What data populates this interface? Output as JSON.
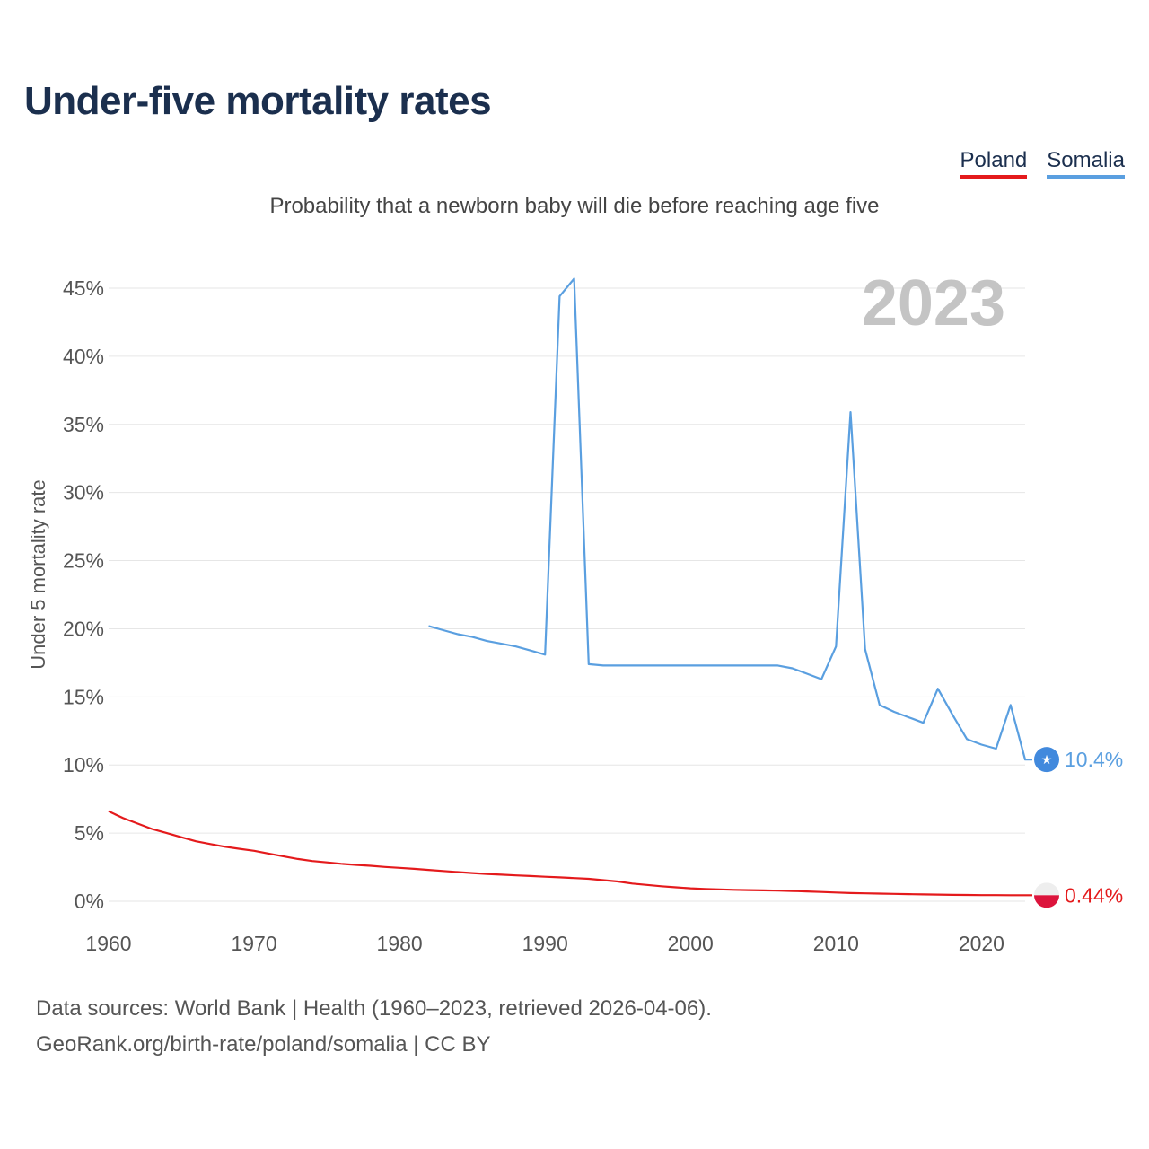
{
  "title": "Under-five mortality rates",
  "subtitle": "Probability that a newborn baby will die before reaching age five",
  "legend": [
    {
      "name": "Poland",
      "color": "#e41a1c"
    },
    {
      "name": "Somalia",
      "color": "#5a9fe0"
    }
  ],
  "footer": {
    "line1": "Data sources: World Bank | Health (1960–2023, retrieved 2026-04-06).",
    "line2": "GeoRank.org/birth-rate/poland/somalia | CC BY"
  },
  "chart_data": {
    "type": "line",
    "title": "Under-five mortality rates",
    "subtitle": "Probability that a newborn baby will die before reaching age five",
    "ylabel": "Under 5 mortality rate",
    "xlabel": "",
    "year_label": "2023",
    "xlim": [
      1960,
      2023
    ],
    "ylim": [
      0,
      45
    ],
    "x_ticks": [
      1960,
      1970,
      1980,
      1990,
      2000,
      2010,
      2020
    ],
    "y_ticks": [
      0,
      5,
      10,
      15,
      20,
      25,
      30,
      35,
      40,
      45
    ],
    "y_tick_labels": [
      "0%",
      "5%",
      "10%",
      "15%",
      "20%",
      "25%",
      "30%",
      "35%",
      "40%",
      "45%"
    ],
    "grid": true,
    "series": [
      {
        "name": "Poland",
        "color": "#e41a1c",
        "end_label": "0.44%",
        "x": [
          1960,
          1961,
          1962,
          1963,
          1964,
          1965,
          1966,
          1967,
          1968,
          1969,
          1970,
          1971,
          1972,
          1973,
          1974,
          1975,
          1976,
          1977,
          1978,
          1979,
          1980,
          1981,
          1982,
          1983,
          1984,
          1985,
          1986,
          1987,
          1988,
          1989,
          1990,
          1991,
          1992,
          1993,
          1994,
          1995,
          1996,
          1997,
          1998,
          1999,
          2000,
          2001,
          2002,
          2003,
          2004,
          2005,
          2006,
          2007,
          2008,
          2009,
          2010,
          2011,
          2012,
          2013,
          2014,
          2015,
          2016,
          2017,
          2018,
          2019,
          2020,
          2021,
          2022,
          2023
        ],
        "values": [
          6.6,
          6.1,
          5.7,
          5.3,
          5.0,
          4.7,
          4.4,
          4.2,
          4.0,
          3.85,
          3.7,
          3.5,
          3.3,
          3.1,
          2.95,
          2.85,
          2.75,
          2.67,
          2.6,
          2.52,
          2.45,
          2.38,
          2.3,
          2.22,
          2.14,
          2.07,
          2.0,
          1.95,
          1.9,
          1.85,
          1.8,
          1.75,
          1.7,
          1.65,
          1.55,
          1.45,
          1.3,
          1.2,
          1.1,
          1.02,
          0.95,
          0.9,
          0.87,
          0.84,
          0.82,
          0.8,
          0.78,
          0.75,
          0.72,
          0.68,
          0.64,
          0.6,
          0.58,
          0.56,
          0.54,
          0.52,
          0.5,
          0.49,
          0.47,
          0.46,
          0.45,
          0.45,
          0.44,
          0.44
        ]
      },
      {
        "name": "Somalia",
        "color": "#5a9fe0",
        "end_label": "10.4%",
        "x": [
          1982,
          1983,
          1984,
          1985,
          1986,
          1987,
          1988,
          1989,
          1990,
          1991,
          1992,
          1993,
          1994,
          1995,
          1996,
          1997,
          1998,
          1999,
          2000,
          2001,
          2002,
          2003,
          2004,
          2005,
          2006,
          2007,
          2008,
          2009,
          2010,
          2011,
          2012,
          2013,
          2014,
          2015,
          2016,
          2017,
          2018,
          2019,
          2020,
          2021,
          2022,
          2023
        ],
        "values": [
          20.2,
          19.9,
          19.6,
          19.4,
          19.1,
          18.9,
          18.7,
          18.4,
          18.1,
          44.4,
          45.7,
          17.4,
          17.3,
          17.3,
          17.3,
          17.3,
          17.3,
          17.3,
          17.3,
          17.3,
          17.3,
          17.3,
          17.3,
          17.3,
          17.3,
          17.1,
          16.7,
          16.3,
          18.7,
          35.9,
          18.5,
          14.4,
          13.9,
          13.5,
          13.1,
          15.6,
          13.7,
          11.9,
          11.5,
          11.2,
          14.4,
          10.4
        ]
      }
    ]
  }
}
